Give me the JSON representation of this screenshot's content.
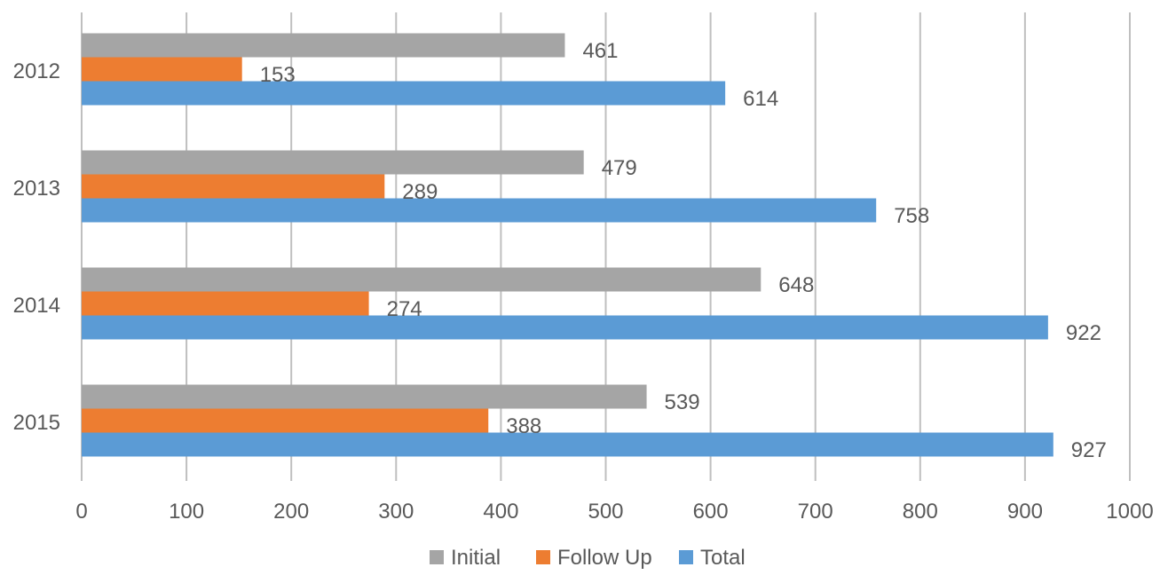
{
  "chart_data": {
    "type": "bar",
    "orientation": "horizontal",
    "categories": [
      "2012",
      "2013",
      "2014",
      "2015"
    ],
    "series": [
      {
        "name": "Initial",
        "color": "#a5a5a5",
        "values": [
          461,
          479,
          648,
          539
        ]
      },
      {
        "name": "Follow Up",
        "color": "#ed7d31",
        "values": [
          153,
          289,
          274,
          388
        ]
      },
      {
        "name": "Total",
        "color": "#5b9bd5",
        "values": [
          614,
          758,
          922,
          927
        ]
      }
    ],
    "x_ticks": [
      "0",
      "100",
      "200",
      "300",
      "400",
      "500",
      "600",
      "700",
      "800",
      "900",
      "1000"
    ],
    "xlim": [
      0,
      1000
    ],
    "grid": "vertical",
    "legend_position": "bottom",
    "data_labels": true
  }
}
